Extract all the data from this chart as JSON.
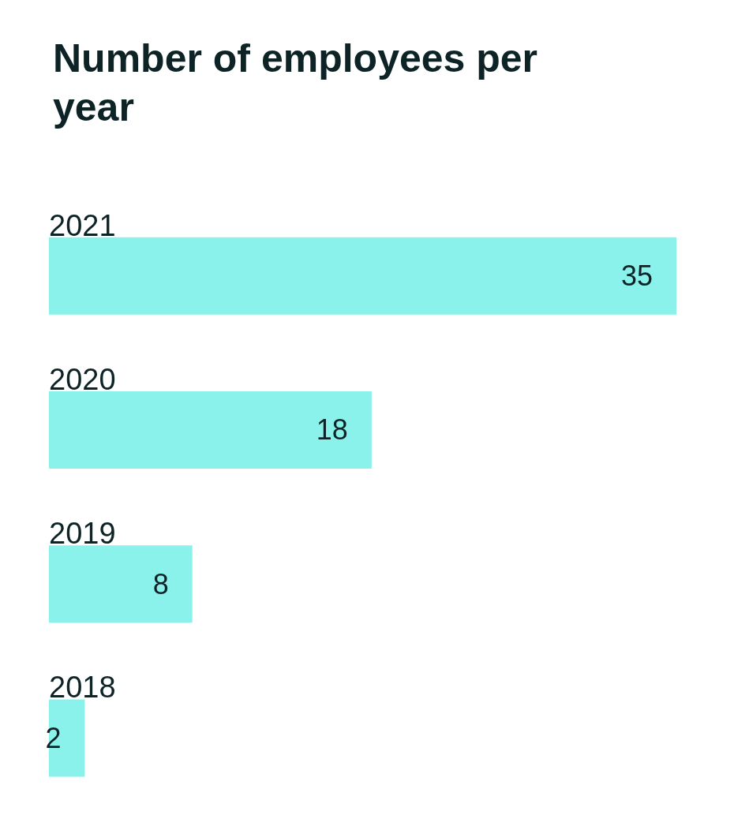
{
  "chart_data": {
    "type": "bar",
    "orientation": "horizontal",
    "title": "Number of employees per year",
    "categories": [
      "2021",
      "2020",
      "2019",
      "2018"
    ],
    "values": [
      35,
      18,
      8,
      2
    ],
    "color": "#8af2ea",
    "data_labels": true
  }
}
